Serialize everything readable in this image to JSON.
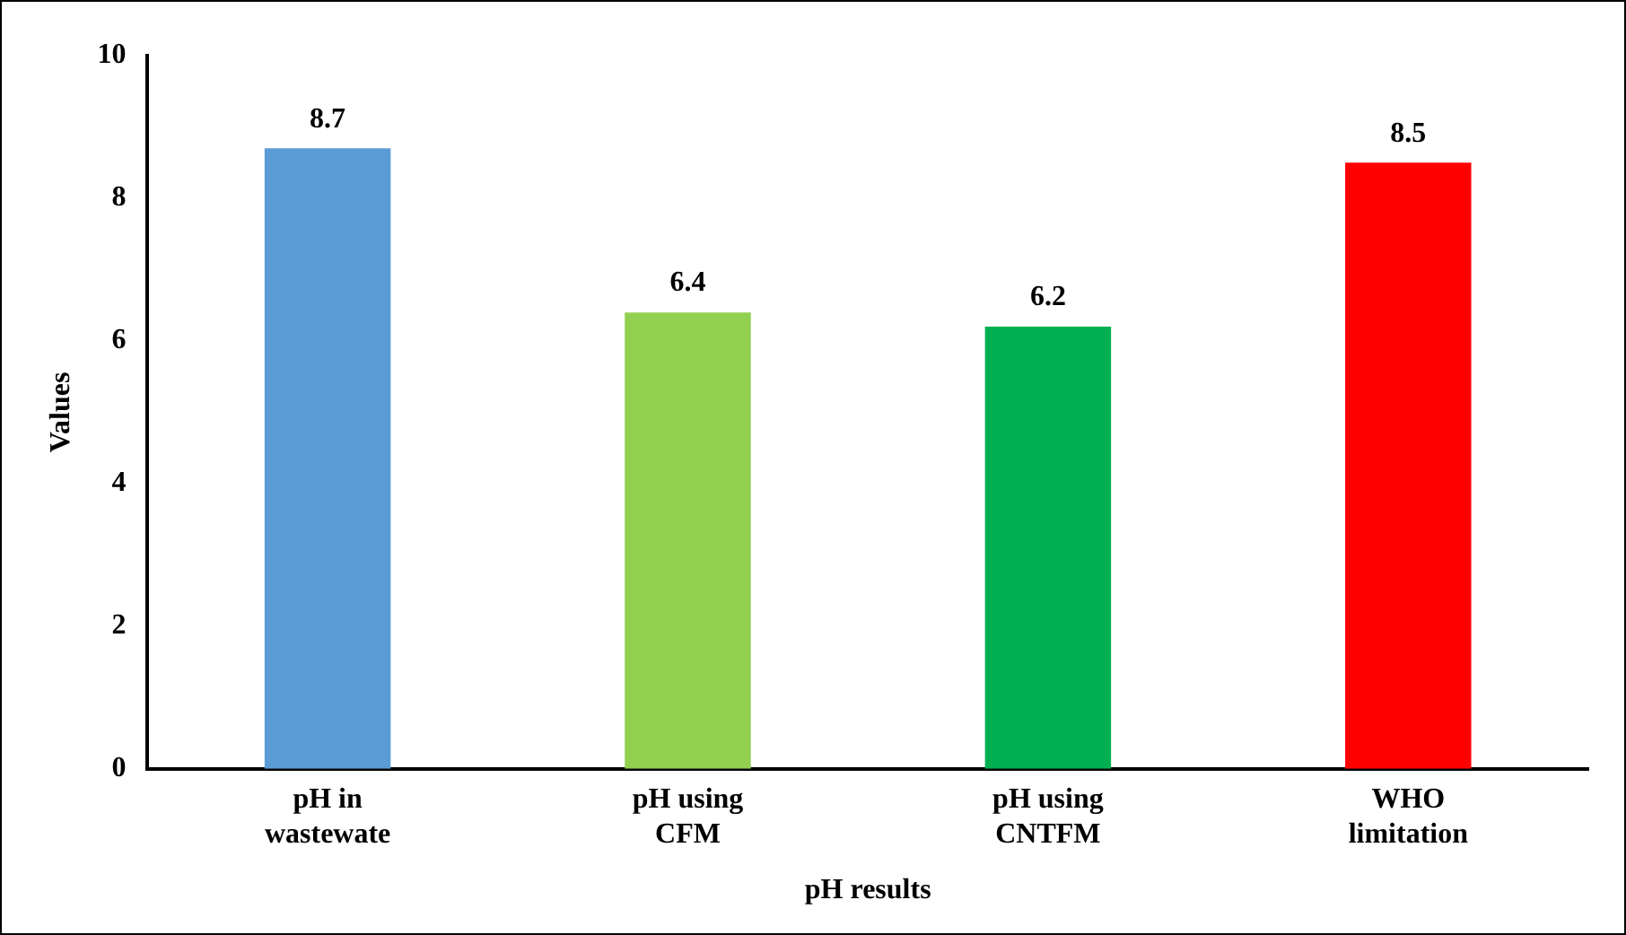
{
  "chart_data": {
    "type": "bar",
    "xlabel": "pH results",
    "ylabel": "Values",
    "categories": [
      "pH in\nwastewate",
      "pH using\nCFM",
      "pH using\nCNTFM",
      "WHO\nlimitation"
    ],
    "values": [
      8.7,
      6.4,
      6.2,
      8.5
    ],
    "colors": [
      "#5b9bd5",
      "#92d050",
      "#00b050",
      "#ff0000"
    ],
    "ylim": [
      0,
      10
    ],
    "yticks": [
      0,
      2,
      4,
      6,
      8,
      10
    ],
    "grid": false,
    "legend": false,
    "data_labels": true
  }
}
